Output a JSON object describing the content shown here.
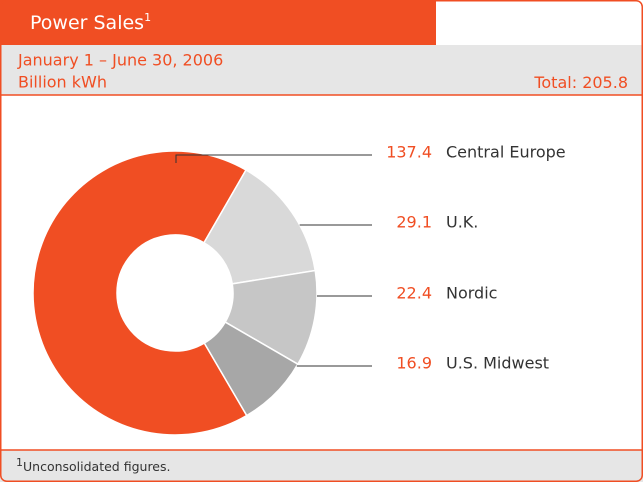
{
  "chart_data": {
    "type": "donut",
    "title": "Power Sales",
    "title_note": "1",
    "subtitle": "January 1 – June 30, 2006",
    "unit": "Billion kWh",
    "total_label": "Total:",
    "total": 205.8,
    "categories": [
      "Central Europe",
      "U.K.",
      "Nordic",
      "U.S. Midwest"
    ],
    "values": [
      137.4,
      29.1,
      22.4,
      16.9
    ],
    "colors": [
      "#f04e23",
      "#d9d9d9",
      "#c6c6c6",
      "#a7a7a7"
    ],
    "footnote_marker": "1",
    "footnote": "Unconsolidated figures."
  }
}
